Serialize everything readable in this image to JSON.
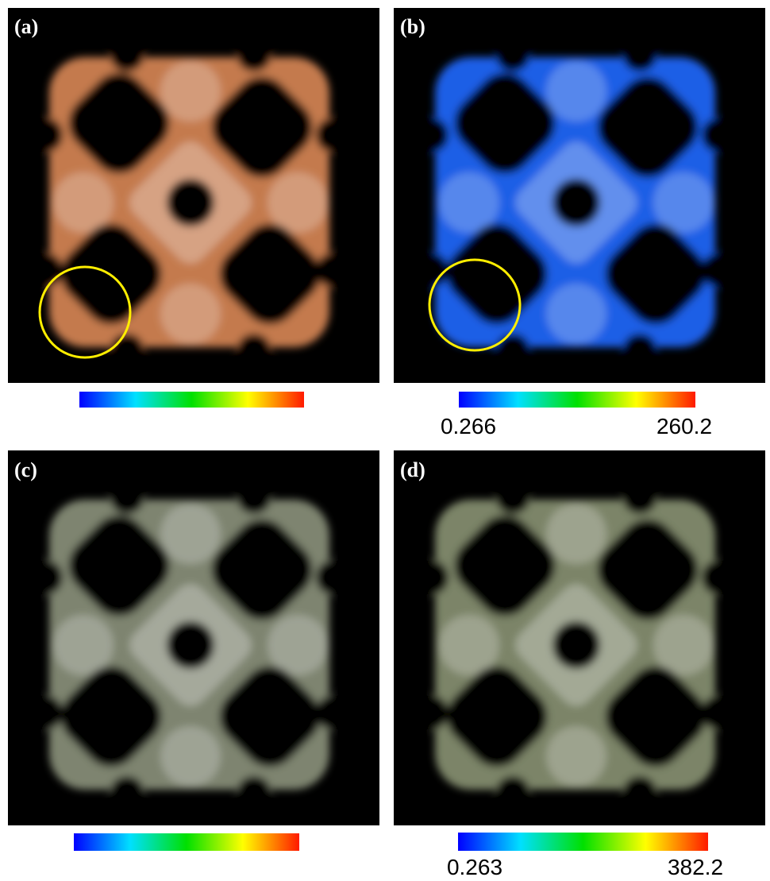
{
  "panels": [
    {
      "label": "(a)"
    },
    {
      "label": "(b)",
      "colorbar": {
        "min_label": "0.266",
        "max_label": "260.2"
      }
    },
    {
      "label": "(c)"
    },
    {
      "label": "(d)",
      "colorbar": {
        "min_label": "0.263",
        "max_label": "382.2"
      }
    }
  ]
}
